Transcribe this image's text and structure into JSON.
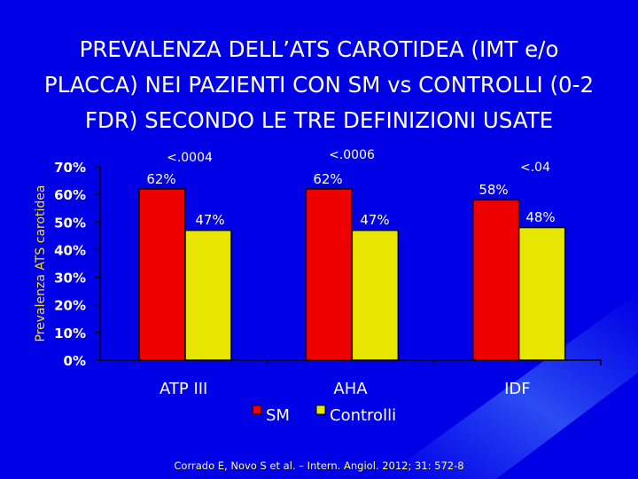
{
  "slide": {
    "title_lines": [
      "PREVALENZA DELL’ATS CAROTIDEA (IMT e/o",
      "PLACCA)    NEI PAZIENTI CON SM vs CONTROLLI (0-2",
      "FDR) SECONDO LE TRE DEFINIZIONI USATE"
    ],
    "citation": "Corrado E, Novo S et al. – Intern. Angiol. 2012; 31: 572-8"
  },
  "colors": {
    "background": "#0000e6",
    "sm": "#ee0000",
    "controlli": "#e6e600",
    "axis_labels": "#ffffff",
    "ylabel": "#f0e020",
    "title": "#ffffff",
    "citation": "#ffff66"
  },
  "chart_data": {
    "type": "bar",
    "categories": [
      "ATP III",
      "AHA",
      "IDF"
    ],
    "series": [
      {
        "name": "SM",
        "values": [
          62,
          62,
          58
        ],
        "labels": [
          "62%",
          "62%",
          "58%"
        ]
      },
      {
        "name": "Controlli",
        "values": [
          47,
          47,
          48
        ],
        "labels": [
          "47%",
          "47%",
          "48%"
        ]
      }
    ],
    "p_values": [
      "<.0004",
      "<.0006",
      "<.04"
    ],
    "ylabel": "Prevalenza ATS carotidea",
    "yticks": [
      "0%",
      "10%",
      "20%",
      "30%",
      "40%",
      "50%",
      "60%",
      "70%"
    ],
    "ylim": [
      0,
      70
    ],
    "legend_position": "bottom-center",
    "grid": false
  }
}
